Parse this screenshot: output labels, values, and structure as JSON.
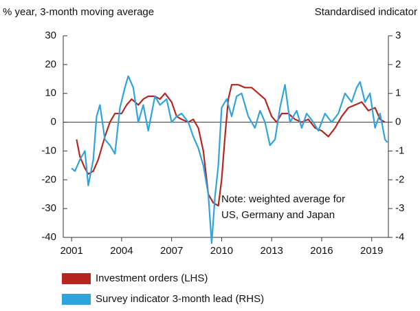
{
  "chart_data": {
    "type": "line",
    "ylabel": "% year, 3-month moving average",
    "y2label": "Standardised indicator",
    "annotation": [
      "Note: weighted average for",
      "US, Germany and Japan"
    ],
    "xlim": [
      2000.5,
      2020
    ],
    "xticks": [
      2001,
      2004,
      2007,
      2010,
      2013,
      2016,
      2019
    ],
    "ylim": [
      -40,
      30
    ],
    "yticks": [
      -40,
      -30,
      -20,
      -10,
      0,
      10,
      20,
      30
    ],
    "y2lim": [
      -4,
      3
    ],
    "y2ticks": [
      -4,
      -3,
      -2,
      -1,
      0,
      1,
      2,
      3
    ],
    "series": [
      {
        "name": "Investment orders (LHS)",
        "color": "#b5261e",
        "axis": "y",
        "x": [
          2001.3,
          2001.5,
          2001.8,
          2002.0,
          2002.3,
          2002.6,
          2003.0,
          2003.3,
          2003.6,
          2004.0,
          2004.3,
          2004.6,
          2005.0,
          2005.3,
          2005.6,
          2006.0,
          2006.3,
          2006.6,
          2007.0,
          2007.3,
          2007.6,
          2008.0,
          2008.3,
          2008.6,
          2008.9,
          2009.2,
          2009.5,
          2009.8,
          2010.0,
          2010.2,
          2010.4,
          2010.6,
          2011.0,
          2011.4,
          2011.8,
          2012.2,
          2012.6,
          2013.0,
          2013.3,
          2013.6,
          2014.0,
          2014.4,
          2014.8,
          2015.2,
          2015.6,
          2016.0,
          2016.4,
          2016.8,
          2017.2,
          2017.6,
          2018.0,
          2018.4,
          2018.8,
          2019.2,
          2019.5,
          2019.8
        ],
        "values": [
          -6,
          -12,
          -16,
          -18,
          -17,
          -13,
          -5,
          0,
          3,
          3,
          6,
          8,
          6,
          8,
          9,
          9,
          8,
          10,
          7,
          2,
          1,
          0,
          1,
          -2,
          -10,
          -25,
          -28,
          -29,
          -20,
          -5,
          8,
          13,
          13,
          12,
          12,
          10,
          8,
          2,
          0,
          3,
          3,
          1,
          0,
          1,
          -2,
          -3,
          -5,
          -2,
          2,
          5,
          6,
          7,
          4,
          5,
          1,
          0
        ]
      },
      {
        "name": "Survey indicator 3-month lead (RHS)",
        "color": "#2ea3dc",
        "axis": "y2",
        "x": [
          2001.0,
          2001.2,
          2001.5,
          2001.8,
          2002.0,
          2002.3,
          2002.5,
          2002.7,
          2003.0,
          2003.3,
          2003.6,
          2003.9,
          2004.2,
          2004.4,
          2004.7,
          2005.0,
          2005.3,
          2005.6,
          2006.0,
          2006.3,
          2006.7,
          2007.0,
          2007.3,
          2007.6,
          2008.0,
          2008.3,
          2008.6,
          2008.9,
          2009.2,
          2009.4,
          2009.6,
          2009.8,
          2010.0,
          2010.3,
          2010.6,
          2010.9,
          2011.2,
          2011.6,
          2012.0,
          2012.3,
          2012.6,
          2012.9,
          2013.2,
          2013.5,
          2013.8,
          2014.1,
          2014.5,
          2014.8,
          2015.1,
          2015.5,
          2015.8,
          2016.2,
          2016.6,
          2017.0,
          2017.4,
          2017.8,
          2018.1,
          2018.3,
          2018.6,
          2018.9,
          2019.2,
          2019.5,
          2019.8,
          2019.95
        ],
        "values": [
          -1.6,
          -1.7,
          -1.3,
          -1.0,
          -2.2,
          -1.3,
          0.2,
          0.6,
          -0.6,
          -0.8,
          -1.1,
          0.5,
          1.2,
          1.6,
          1.2,
          0.0,
          0.6,
          -0.3,
          0.9,
          0.6,
          0.8,
          0.0,
          0.2,
          0.3,
          0.0,
          -0.5,
          -0.9,
          -1.5,
          -2.5,
          -4.2,
          -2.6,
          -1.5,
          0.5,
          0.8,
          0.2,
          0.9,
          1.0,
          0.2,
          -0.2,
          0.4,
          0.0,
          -0.8,
          -0.6,
          0.5,
          1.3,
          0.0,
          0.4,
          -0.2,
          0.3,
          0.0,
          -0.3,
          0.3,
          0.0,
          0.3,
          1.0,
          0.7,
          1.2,
          1.4,
          0.7,
          1.0,
          -0.2,
          0.3,
          -0.6,
          -0.7
        ]
      }
    ]
  }
}
